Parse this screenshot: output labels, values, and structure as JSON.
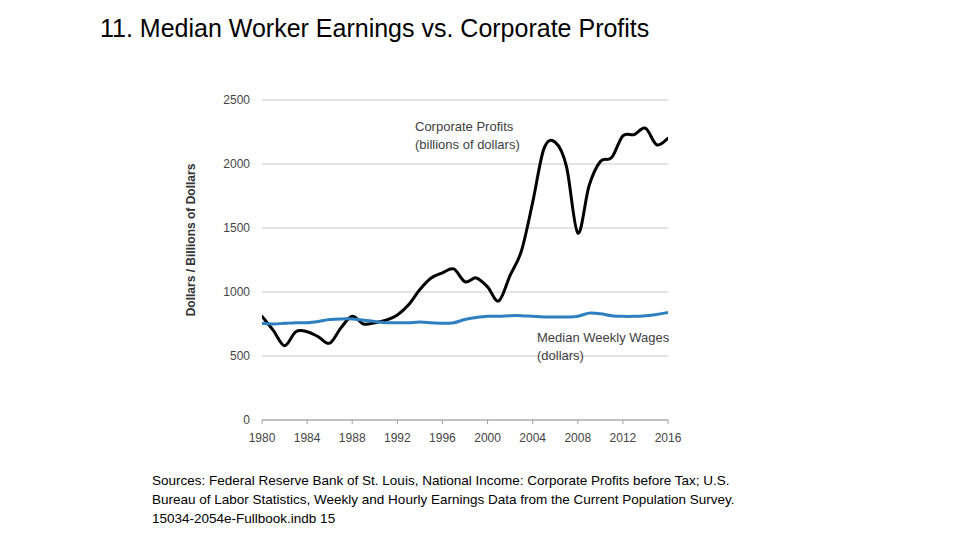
{
  "chart_data": {
    "type": "line",
    "title": "11. Median Worker Earnings vs. Corporate Profits",
    "y_label": "Dollars / Billions of Dollars",
    "x": [
      1980,
      1981,
      1982,
      1983,
      1984,
      1985,
      1986,
      1987,
      1988,
      1989,
      1990,
      1991,
      1992,
      1993,
      1994,
      1995,
      1996,
      1997,
      1998,
      1999,
      2000,
      2001,
      2002,
      2003,
      2004,
      2005,
      2006,
      2007,
      2008,
      2009,
      2010,
      2011,
      2012,
      2013,
      2014,
      2015,
      2016
    ],
    "series": [
      {
        "name": "Corporate Profits (billions of dollars)",
        "color": "#000000",
        "values": [
          810,
          700,
          580,
          690,
          690,
          650,
          600,
          720,
          810,
          750,
          760,
          780,
          820,
          900,
          1020,
          1110,
          1150,
          1180,
          1080,
          1110,
          1040,
          930,
          1130,
          1320,
          1700,
          2120,
          2170,
          1980,
          1460,
          1830,
          2020,
          2050,
          2220,
          2230,
          2280,
          2150,
          2200
        ]
      },
      {
        "name": "Median Weekly Wages (dollars)",
        "color": "#2e7fc0",
        "values": [
          755,
          750,
          755,
          760,
          760,
          770,
          785,
          790,
          790,
          780,
          770,
          760,
          760,
          760,
          765,
          760,
          755,
          760,
          785,
          800,
          810,
          810,
          815,
          815,
          810,
          805,
          805,
          805,
          810,
          835,
          830,
          815,
          810,
          810,
          815,
          825,
          840
        ]
      }
    ],
    "xlim": [
      1980,
      2016
    ],
    "xticks": [
      1980,
      1984,
      1988,
      1992,
      1996,
      2000,
      2004,
      2008,
      2012,
      2016
    ],
    "ylim": [
      0,
      2500
    ],
    "yticks": [
      0,
      500,
      1000,
      1500,
      2000,
      2500
    ],
    "grid": true
  },
  "source": [
    "Sources: Federal Reserve Bank of St. Louis, National Income: Corporate Profits before Tax; U.S.",
    "Bureau of Labor Statistics, Weekly and Hourly Earnings Data from the Current Population Survey.",
    "15034-2054e-Fullbook.indb 15"
  ]
}
